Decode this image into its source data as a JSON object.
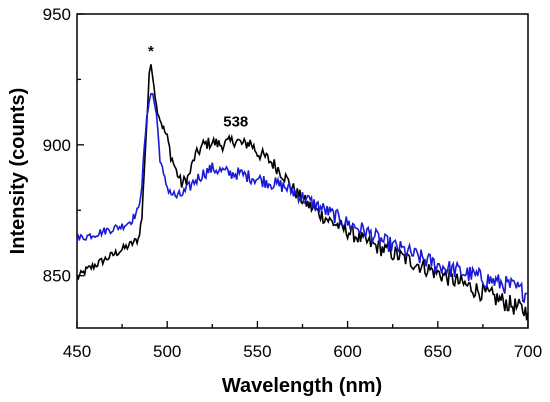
{
  "chart_data": {
    "type": "line",
    "xlabel": "Wavelength (nm)",
    "ylabel": "Intensity (counts)",
    "xlim": [
      450,
      700
    ],
    "ylim": [
      830,
      950
    ],
    "x_ticks": [
      "450",
      "500",
      "550",
      "600",
      "650",
      "700"
    ],
    "y_ticks": [
      "850",
      "900",
      "950"
    ],
    "grid": false,
    "annotations": [
      {
        "text": "*",
        "x": 491,
        "y": 934
      },
      {
        "text": "538",
        "x": 538,
        "y": 907
      }
    ],
    "series": [
      {
        "color": "#000000",
        "points": [
          [
            450,
            849
          ],
          [
            455,
            852
          ],
          [
            460,
            854
          ],
          [
            465,
            856
          ],
          [
            470,
            858
          ],
          [
            475,
            860
          ],
          [
            480,
            862
          ],
          [
            484,
            864
          ],
          [
            486,
            872
          ],
          [
            488,
            900
          ],
          [
            490,
            926
          ],
          [
            491,
            931
          ],
          [
            492,
            927
          ],
          [
            494,
            915
          ],
          [
            496,
            910
          ],
          [
            498,
            906
          ],
          [
            500,
            903
          ],
          [
            502,
            896
          ],
          [
            505,
            890
          ],
          [
            508,
            885
          ],
          [
            512,
            888
          ],
          [
            515,
            895
          ],
          [
            520,
            900
          ],
          [
            525,
            901
          ],
          [
            530,
            900
          ],
          [
            535,
            901
          ],
          [
            538,
            902
          ],
          [
            542,
            900
          ],
          [
            546,
            901
          ],
          [
            550,
            897
          ],
          [
            555,
            895
          ],
          [
            560,
            892
          ],
          [
            565,
            888
          ],
          [
            570,
            883
          ],
          [
            575,
            879
          ],
          [
            580,
            876
          ],
          [
            590,
            871
          ],
          [
            600,
            867
          ],
          [
            610,
            863
          ],
          [
            620,
            860
          ],
          [
            630,
            857
          ],
          [
            640,
            854
          ],
          [
            650,
            851
          ],
          [
            660,
            848
          ],
          [
            670,
            845
          ],
          [
            680,
            842
          ],
          [
            690,
            839
          ],
          [
            700,
            836
          ]
        ]
      },
      {
        "color": "#1a1ad6",
        "points": [
          [
            450,
            864
          ],
          [
            455,
            865
          ],
          [
            460,
            866
          ],
          [
            465,
            867
          ],
          [
            470,
            868
          ],
          [
            475,
            869
          ],
          [
            480,
            871
          ],
          [
            484,
            875
          ],
          [
            486,
            885
          ],
          [
            488,
            905
          ],
          [
            490,
            918
          ],
          [
            491,
            920
          ],
          [
            492,
            919
          ],
          [
            494,
            912
          ],
          [
            496,
            895
          ],
          [
            498,
            888
          ],
          [
            500,
            884
          ],
          [
            503,
            881
          ],
          [
            506,
            880
          ],
          [
            510,
            882
          ],
          [
            515,
            886
          ],
          [
            520,
            889
          ],
          [
            525,
            891
          ],
          [
            530,
            890
          ],
          [
            535,
            889
          ],
          [
            540,
            889
          ],
          [
            545,
            888
          ],
          [
            550,
            887
          ],
          [
            555,
            886
          ],
          [
            560,
            885
          ],
          [
            565,
            884
          ],
          [
            570,
            882
          ],
          [
            575,
            880
          ],
          [
            580,
            878
          ],
          [
            590,
            874
          ],
          [
            600,
            870
          ],
          [
            610,
            867
          ],
          [
            620,
            863
          ],
          [
            630,
            860
          ],
          [
            640,
            857
          ],
          [
            650,
            854
          ],
          [
            660,
            852
          ],
          [
            670,
            850
          ],
          [
            680,
            848
          ],
          [
            690,
            846
          ],
          [
            700,
            843
          ]
        ]
      }
    ]
  }
}
